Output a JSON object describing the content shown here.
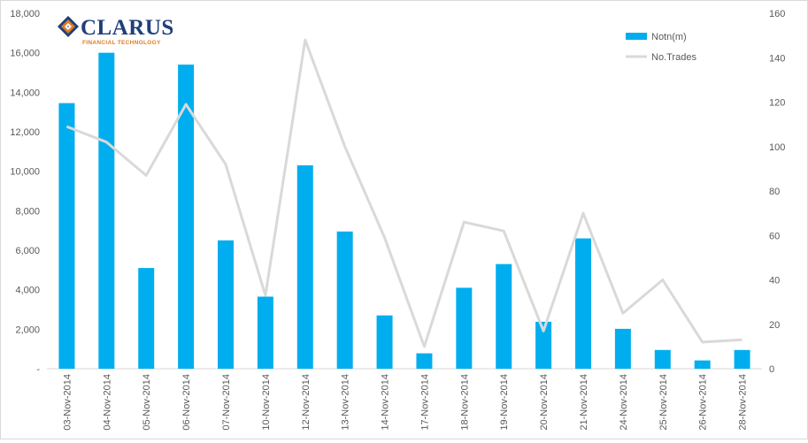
{
  "logo": {
    "name": "CLARUS",
    "tagline": "FINANCIAL TECHNOLOGY"
  },
  "colors": {
    "bar": "#00aeef",
    "line": "#d9d9d9",
    "logo_blue": "#1f3f7a",
    "logo_orange": "#e07b22"
  },
  "chart_data": {
    "type": "bar",
    "categories": [
      "03-Nov-2014",
      "04-Nov-2014",
      "05-Nov-2014",
      "06-Nov-2014",
      "07-Nov-2014",
      "10-Nov-2014",
      "12-Nov-2014",
      "13-Nov-2014",
      "14-Nov-2014",
      "17-Nov-2014",
      "18-Nov-2014",
      "19-Nov-2014",
      "20-Nov-2014",
      "21-Nov-2014",
      "24-Nov-2014",
      "25-Nov-2014",
      "26-Nov-2014",
      "28-Nov-2014"
    ],
    "series": [
      {
        "name": "Notn(m)",
        "type": "bar",
        "axis": "left",
        "values": [
          13450,
          16000,
          5100,
          15400,
          6500,
          3650,
          10300,
          6950,
          2700,
          780,
          4100,
          5300,
          2380,
          6600,
          2020,
          950,
          420,
          950
        ]
      },
      {
        "name": "No.Trades",
        "type": "line",
        "axis": "right",
        "values": [
          109,
          102,
          87,
          119,
          92,
          33,
          148,
          100,
          59,
          10,
          66,
          62,
          17,
          70,
          25,
          40,
          12,
          13
        ]
      }
    ],
    "y_left": {
      "ylim": [
        0,
        18000
      ],
      "ticks": [
        "-",
        "2,000",
        "4,000",
        "6,000",
        "8,000",
        "10,000",
        "12,000",
        "14,000",
        "16,000",
        "18,000"
      ]
    },
    "y_right": {
      "ylim": [
        0,
        160
      ],
      "ticks": [
        "0",
        "20",
        "40",
        "60",
        "80",
        "100",
        "120",
        "140",
        "160"
      ]
    },
    "grid": false,
    "legend_position": "top-right"
  }
}
